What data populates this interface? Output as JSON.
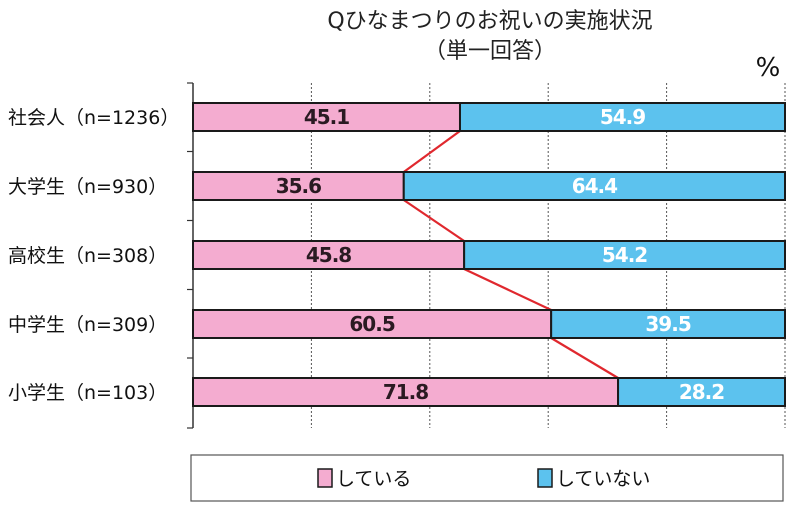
{
  "chart_data": {
    "type": "bar",
    "stacked": true,
    "orientation": "horizontal",
    "title": "Qひなまつりのお祝いの実施状況",
    "subtitle": "（単一回答）",
    "unit_label": "%",
    "categories": [
      "社会人（n=1236）",
      "大学生（n=930）",
      "高校生（n=308）",
      "中学生（n=309）",
      "小学生（n=103）"
    ],
    "series": [
      {
        "name": "している",
        "values": [
          45.1,
          35.6,
          45.8,
          60.5,
          71.8
        ],
        "labels": [
          "45.1",
          "35.6",
          "45.8",
          "60.5",
          "71.8"
        ],
        "color": "#f4acd0",
        "label_color": "#2a1a22"
      },
      {
        "name": "していない",
        "values": [
          54.9,
          64.4,
          54.2,
          39.5,
          28.2
        ],
        "labels": [
          "54.9",
          "64.4",
          "54.2",
          "39.5",
          "28.2"
        ],
        "color": "#5cc2ee",
        "label_color": "#ffffff"
      }
    ],
    "xlim": [
      0,
      100
    ],
    "grid": true,
    "connector_color": "#e0282e",
    "legend_position": "bottom"
  }
}
